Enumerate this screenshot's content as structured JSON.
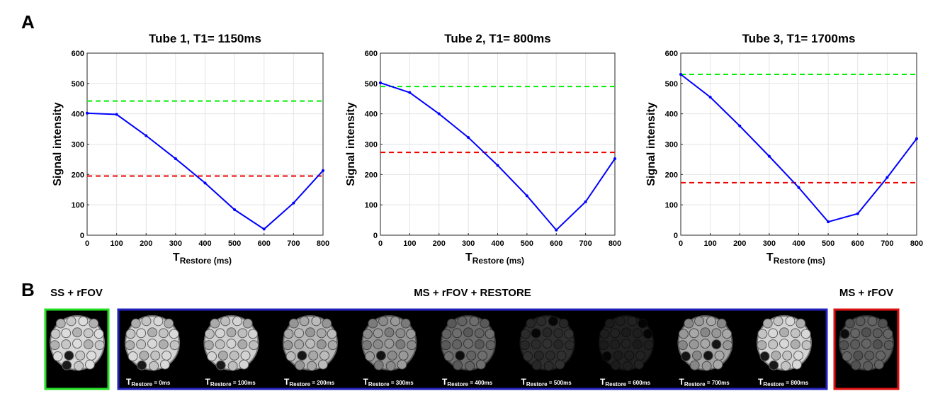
{
  "panel_a_letter": "A",
  "panel_b_letter": "B",
  "chart_data": [
    {
      "type": "line",
      "title": "Tube 1, T1= 1150ms",
      "xlabel_main": "T",
      "xlabel_sub": "Restore (ms)",
      "ylabel": "Signal intensity",
      "xlim": [
        0,
        800
      ],
      "ylim": [
        0,
        600
      ],
      "xticks": [
        0,
        100,
        200,
        300,
        400,
        500,
        600,
        700,
        800
      ],
      "yticks": [
        0,
        100,
        200,
        300,
        400,
        500,
        600
      ],
      "x": [
        0,
        100,
        200,
        300,
        400,
        500,
        600,
        700,
        800
      ],
      "series": [
        {
          "name": "MS + rFOV + RESTORE",
          "color": "#0000ff",
          "values": [
            402,
            398,
            328,
            252,
            172,
            84,
            20,
            106,
            213
          ]
        }
      ],
      "references": [
        {
          "name": "SS + rFOV",
          "color": "#00ee00",
          "value": 442
        },
        {
          "name": "MS + rFOV",
          "color": "#ee0000",
          "value": 195
        }
      ],
      "grid": true
    },
    {
      "type": "line",
      "title": "Tube 2, T1= 800ms",
      "xlabel_main": "T",
      "xlabel_sub": "Restore (ms)",
      "ylabel": "Signal intensity",
      "xlim": [
        0,
        800
      ],
      "ylim": [
        0,
        600
      ],
      "xticks": [
        0,
        100,
        200,
        300,
        400,
        500,
        600,
        700,
        800
      ],
      "yticks": [
        0,
        100,
        200,
        300,
        400,
        500,
        600
      ],
      "x": [
        0,
        100,
        200,
        300,
        400,
        500,
        600,
        700,
        800
      ],
      "series": [
        {
          "name": "MS + rFOV + RESTORE",
          "color": "#0000ff",
          "values": [
            502,
            470,
            400,
            322,
            230,
            130,
            17,
            110,
            252
          ]
        }
      ],
      "references": [
        {
          "name": "SS + rFOV",
          "color": "#00ee00",
          "value": 490
        },
        {
          "name": "MS + rFOV",
          "color": "#ee0000",
          "value": 273
        }
      ],
      "grid": true
    },
    {
      "type": "line",
      "title": "Tube 3, T1= 1700ms",
      "xlabel_main": "T",
      "xlabel_sub": "Restore (ms)",
      "ylabel": "Signal intensity",
      "xlim": [
        0,
        800
      ],
      "ylim": [
        0,
        600
      ],
      "xticks": [
        0,
        100,
        200,
        300,
        400,
        500,
        600,
        700,
        800
      ],
      "yticks": [
        0,
        100,
        200,
        300,
        400,
        500,
        600
      ],
      "x": [
        0,
        100,
        200,
        300,
        400,
        500,
        600,
        700,
        800
      ],
      "series": [
        {
          "name": "MS + rFOV + RESTORE",
          "color": "#0000ff",
          "values": [
            530,
            455,
            360,
            260,
            157,
            44,
            71,
            190,
            318
          ]
        }
      ],
      "references": [
        {
          "name": "SS + rFOV",
          "color": "#00ee00",
          "value": 530
        },
        {
          "name": "MS + rFOV",
          "color": "#ee0000",
          "value": 173
        }
      ],
      "grid": true
    }
  ],
  "panel_b": {
    "groups": [
      {
        "label": "SS + rFOV",
        "border_color": "#22dd22"
      },
      {
        "label": "MS + rFOV + RESTORE",
        "border_color": "#2222bb"
      },
      {
        "label": "MS + rFOV",
        "border_color": "#dd1111"
      }
    ],
    "images": [
      {
        "label": "",
        "sub": "",
        "brightness": 0.92,
        "dark_tubes": [
          15,
          18
        ]
      },
      {
        "label": "T",
        "sub": "Restore",
        "value": " = 0ms",
        "brightness": 0.9,
        "dark_tubes": [
          18
        ]
      },
      {
        "label": "T",
        "sub": "Restore",
        "value": " = 100ms",
        "brightness": 0.88,
        "dark_tubes": [
          18
        ]
      },
      {
        "label": "T",
        "sub": "Restore",
        "value": " = 200ms",
        "brightness": 0.78,
        "dark_tubes": [
          15
        ]
      },
      {
        "label": "T",
        "sub": "Restore",
        "value": " = 300ms",
        "brightness": 0.64,
        "dark_tubes": [
          15
        ]
      },
      {
        "label": "T",
        "sub": "Restore",
        "value": " = 400ms",
        "brightness": 0.46,
        "dark_tubes": [
          15
        ]
      },
      {
        "label": "T",
        "sub": "Restore",
        "value": " = 500ms",
        "brightness": 0.2,
        "dark_tubes": [
          2,
          5
        ]
      },
      {
        "label": "T",
        "sub": "Restore",
        "value": " = 600ms",
        "brightness": 0.14,
        "dark_tubes": [
          3,
          8,
          14
        ]
      },
      {
        "label": "T",
        "sub": "Restore",
        "value": " = 700ms",
        "brightness": 0.7,
        "dark_tubes": [
          12,
          14,
          16
        ]
      },
      {
        "label": "T",
        "sub": "Restore",
        "value": " = 800ms",
        "brightness": 0.9,
        "dark_tubes": [
          14,
          18
        ]
      },
      {
        "label": "",
        "sub": "",
        "brightness": 0.42,
        "dark_tubes": [
          4
        ]
      }
    ]
  }
}
